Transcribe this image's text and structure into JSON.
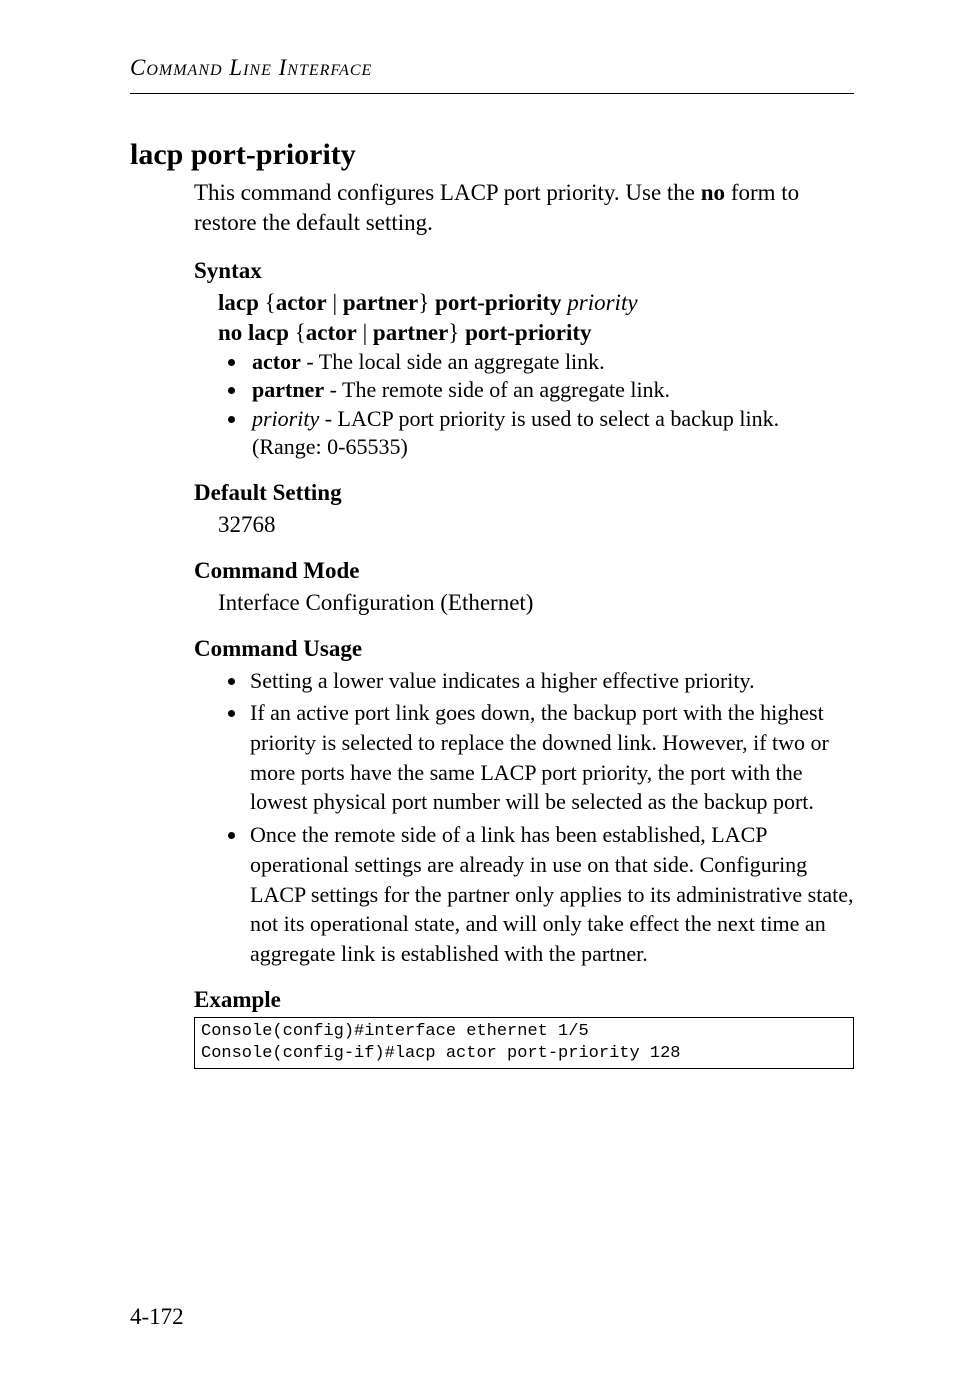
{
  "runningHead": "Command Line Interface",
  "title": "lacp port-priority",
  "intro_line1": "This command configures LACP port priority. Use the ",
  "intro_no": "no",
  "intro_line2": " form to restore the default setting.",
  "syntax": {
    "head": "Syntax",
    "l1_a": "lacp ",
    "l1_b": "{",
    "l1_c": "actor",
    "l1_d": " | ",
    "l1_e": "partner",
    "l1_f": "} ",
    "l1_g": "port-priority",
    "l1_h": " ",
    "l1_i": "priority",
    "l2_a": "no lacp ",
    "l2_b": "{",
    "l2_c": "actor",
    "l2_d": " | ",
    "l2_e": "partner",
    "l2_f": "} ",
    "l2_g": "port-priority",
    "b1_bold": "actor",
    "b1_rest": " - The local side an aggregate link.",
    "b2_bold": "partner",
    "b2_rest": " - The remote side of an aggregate link.",
    "b3_ital": "priority",
    "b3_rest": " - LACP port priority is used to select a backup link. (Range: 0-65535)"
  },
  "default": {
    "head": "Default Setting",
    "val": "32768"
  },
  "mode": {
    "head": "Command Mode",
    "val": "Interface Configuration (Ethernet)"
  },
  "usage": {
    "head": "Command Usage",
    "b1": "Setting a lower value indicates a higher effective priority.",
    "b2": "If an active port link goes down, the backup port with the highest priority is selected to replace the downed link. However, if two or more ports have the same LACP port priority, the port with the lowest physical port number will be selected as the backup port.",
    "b3": "Once the remote side of a link has been established, LACP operational settings are already in use on that side. Configuring LACP settings for the partner only applies to its administrative state, not its operational state, and will only take effect the next time an aggregate link is established with the partner."
  },
  "example": {
    "head": "Example",
    "code": "Console(config)#interface ethernet 1/5\nConsole(config-if)#lacp actor port-priority 128"
  },
  "pageNum": "4-172"
}
